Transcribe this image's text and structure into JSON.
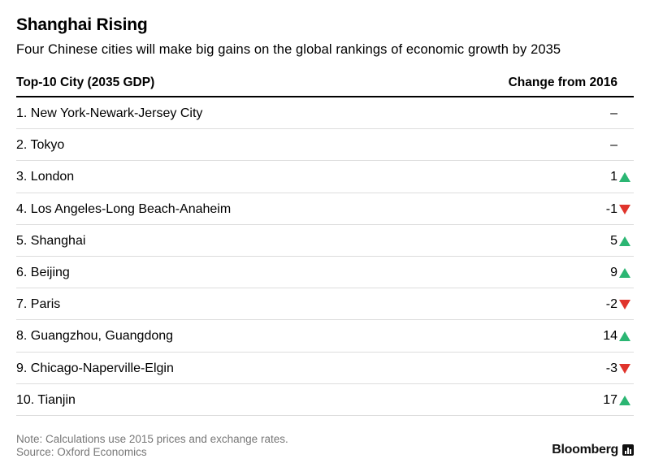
{
  "title": "Shanghai Rising",
  "subtitle": "Four Chinese cities will make big gains on the global rankings of economic growth by 2035",
  "table": {
    "header_city": "Top-10 City (2035 GDP)",
    "header_change": "Change from 2016"
  },
  "colors": {
    "up": "#2bb673",
    "down": "#e0342c"
  },
  "chart_data": {
    "type": "table",
    "title": "Shanghai Rising",
    "subtitle": "Four Chinese cities will make big gains on the global rankings of economic growth by 2035",
    "columns": [
      "Top-10 City (2035 GDP)",
      "Change from 2016"
    ],
    "rows": [
      {
        "city": "1. New York-Newark-Jersey City",
        "change": "–",
        "direction": "none"
      },
      {
        "city": "2. Tokyo",
        "change": "–",
        "direction": "none"
      },
      {
        "city": "3. London",
        "change": "1",
        "direction": "up"
      },
      {
        "city": "4. Los Angeles-Long Beach-Anaheim",
        "change": "-1",
        "direction": "down"
      },
      {
        "city": "5. Shanghai",
        "change": "5",
        "direction": "up"
      },
      {
        "city": "6. Beijing",
        "change": "9",
        "direction": "up"
      },
      {
        "city": "7. Paris",
        "change": "-2",
        "direction": "down"
      },
      {
        "city": "8. Guangzhou, Guangdong",
        "change": "14",
        "direction": "up"
      },
      {
        "city": "9. Chicago-Naperville-Elgin",
        "change": "-3",
        "direction": "down"
      },
      {
        "city": "10. Tianjin",
        "change": "17",
        "direction": "up"
      }
    ]
  },
  "footer": {
    "note": "Note: Calculations use 2015 prices and exchange rates.",
    "source": "Source: Oxford Economics",
    "brand": "Bloomberg",
    "brand_icon": "bloomberg-chart-icon"
  }
}
